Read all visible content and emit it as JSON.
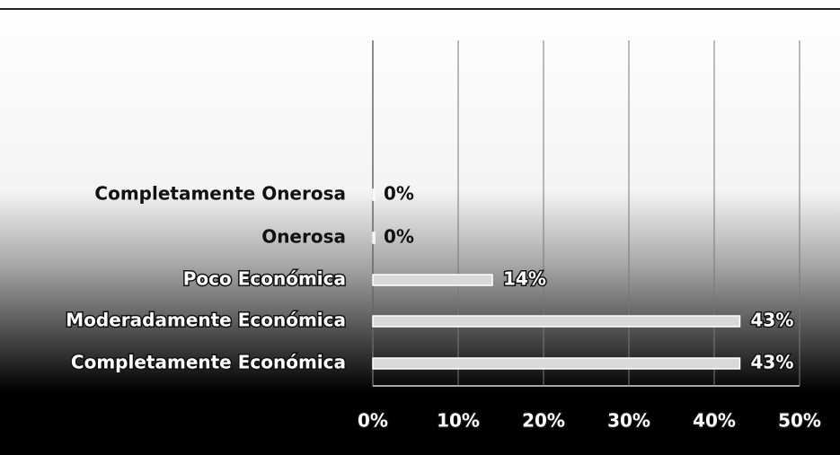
{
  "chart_data": {
    "type": "bar",
    "orientation": "horizontal",
    "categories": [
      "Completamente Onerosa",
      "Onerosa",
      "Poco Económica",
      "Moderadamente Económica",
      "Completamente Económica"
    ],
    "values": [
      0,
      0,
      14,
      43,
      43
    ],
    "value_labels": [
      "0%",
      "0%",
      "14%",
      "43%",
      "43%"
    ],
    "color": "#d9d9d9",
    "xlim": [
      0,
      50
    ],
    "xticks": [
      {
        "value": 0,
        "label": "0%"
      },
      {
        "value": 10,
        "label": "10%"
      },
      {
        "value": 20,
        "label": "20%"
      },
      {
        "value": 30,
        "label": "30%"
      },
      {
        "value": 40,
        "label": "40%"
      },
      {
        "value": 50,
        "label": "50%"
      }
    ],
    "grid": true
  }
}
